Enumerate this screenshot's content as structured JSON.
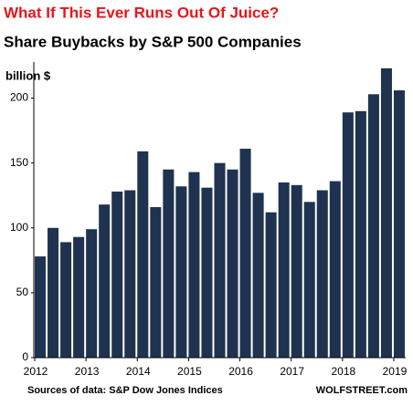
{
  "chart_data": {
    "type": "bar",
    "title": "What If This Ever Runs Out Of Juice?",
    "subtitle": "Share Buybacks by S&P 500 Companies",
    "y_label": "billion $",
    "source": "Sources of data: S&P Dow Jones Indices",
    "credit": "WOLFSTREET.com",
    "categories": [
      "2012",
      null,
      null,
      null,
      "2013",
      null,
      null,
      null,
      "2014",
      null,
      null,
      null,
      "2015",
      null,
      null,
      null,
      "2016",
      null,
      null,
      null,
      "2017",
      null,
      null,
      null,
      "2018",
      null,
      null,
      null,
      "2019"
    ],
    "values": [
      78,
      100,
      89,
      93,
      99,
      118,
      128,
      129,
      159,
      116,
      145,
      132,
      143,
      131,
      150,
      145,
      161,
      127,
      112,
      135,
      133,
      120,
      129,
      136,
      189,
      190,
      203,
      223,
      206
    ],
    "color": "#1f3350",
    "ylim": [
      0,
      225
    ],
    "yticks": [
      0,
      50,
      100,
      150,
      200
    ],
    "grid": false
  }
}
